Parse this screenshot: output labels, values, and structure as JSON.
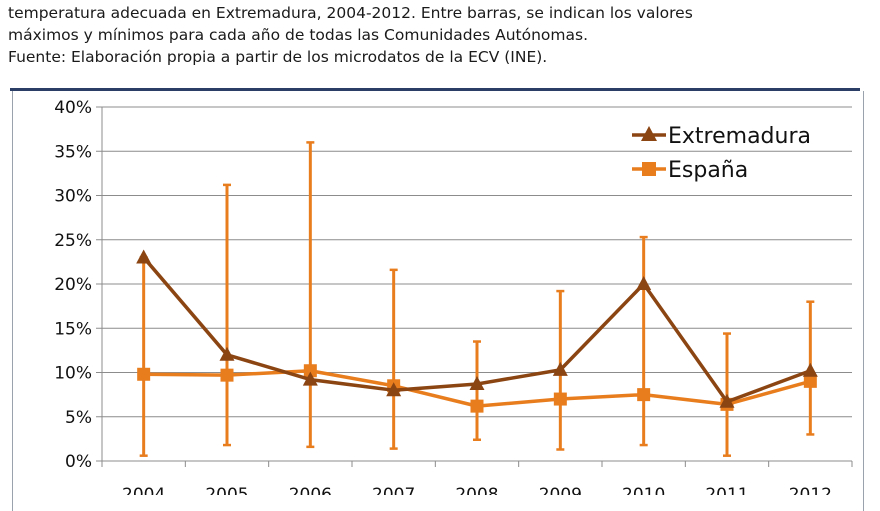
{
  "caption": {
    "line1": "temperatura adecuada en Extremadura, 2004-2012. Entre barras, se indican los valores",
    "line2": "máximos y mínimos para cada año de todas las Comunidades Autónomas.",
    "source": "Fuente: Elaboración propia a partir de los microdatos de la ECV (INE)."
  },
  "chart_data": {
    "type": "line",
    "title": "",
    "xlabel": "",
    "ylabel": "",
    "ylim": [
      0,
      40
    ],
    "yticks": [
      "0%",
      "5%",
      "10%",
      "15%",
      "20%",
      "25%",
      "30%",
      "35%",
      "40%"
    ],
    "grid": true,
    "legend_position": "top-right",
    "categories": [
      "2004",
      "2005",
      "2006",
      "2007",
      "2008",
      "2009",
      "2010",
      "2011",
      "2012"
    ],
    "series": [
      {
        "name": "Extremadura",
        "color": "#8b4513",
        "marker": "triangle",
        "values": [
          23.0,
          12.0,
          9.2,
          8.0,
          8.7,
          10.3,
          20.0,
          6.7,
          10.2
        ]
      },
      {
        "name": "España",
        "color": "#e87d1e",
        "marker": "square",
        "values": [
          9.8,
          9.7,
          10.2,
          8.5,
          6.2,
          7.0,
          7.5,
          6.4,
          9.0
        ]
      }
    ],
    "range_bars": {
      "color": "#e87d1e",
      "max": [
        23.0,
        31.2,
        36.0,
        21.6,
        13.5,
        19.2,
        25.3,
        14.4,
        18.0
      ],
      "min": [
        0.6,
        1.8,
        1.6,
        1.4,
        2.4,
        1.3,
        1.8,
        0.6,
        3.0
      ]
    }
  }
}
